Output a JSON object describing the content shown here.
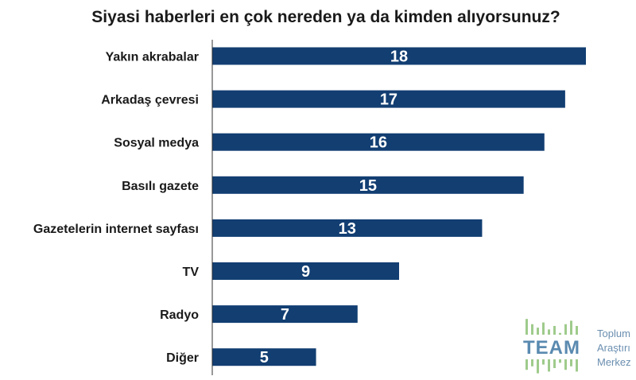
{
  "chart_data": {
    "type": "bar",
    "orientation": "horizontal",
    "title": "Siyasi haberleri en çok nereden ya da kimden alıyorsunuz?",
    "categories": [
      "Yakın akrabalar",
      "Arkadaş çevresi",
      "Sosyal medya",
      "Basılı gazete",
      "Gazetelerin internet sayfası",
      "TV",
      "Radyo",
      "Diğer"
    ],
    "values": [
      18,
      17,
      16,
      15,
      13,
      9,
      7,
      5
    ],
    "xlim": [
      0,
      18
    ],
    "grid": false,
    "legend": "none"
  },
  "colors": {
    "bar": "#123e72",
    "axis": "#333333",
    "logo_green": "#9fcb8c",
    "logo_blue": "#5a8ab0",
    "logo_text": "#6b8fb0"
  },
  "logo": {
    "name": "TEAM",
    "lines": [
      "Toplum",
      "Araştırı",
      "Merkez"
    ]
  }
}
